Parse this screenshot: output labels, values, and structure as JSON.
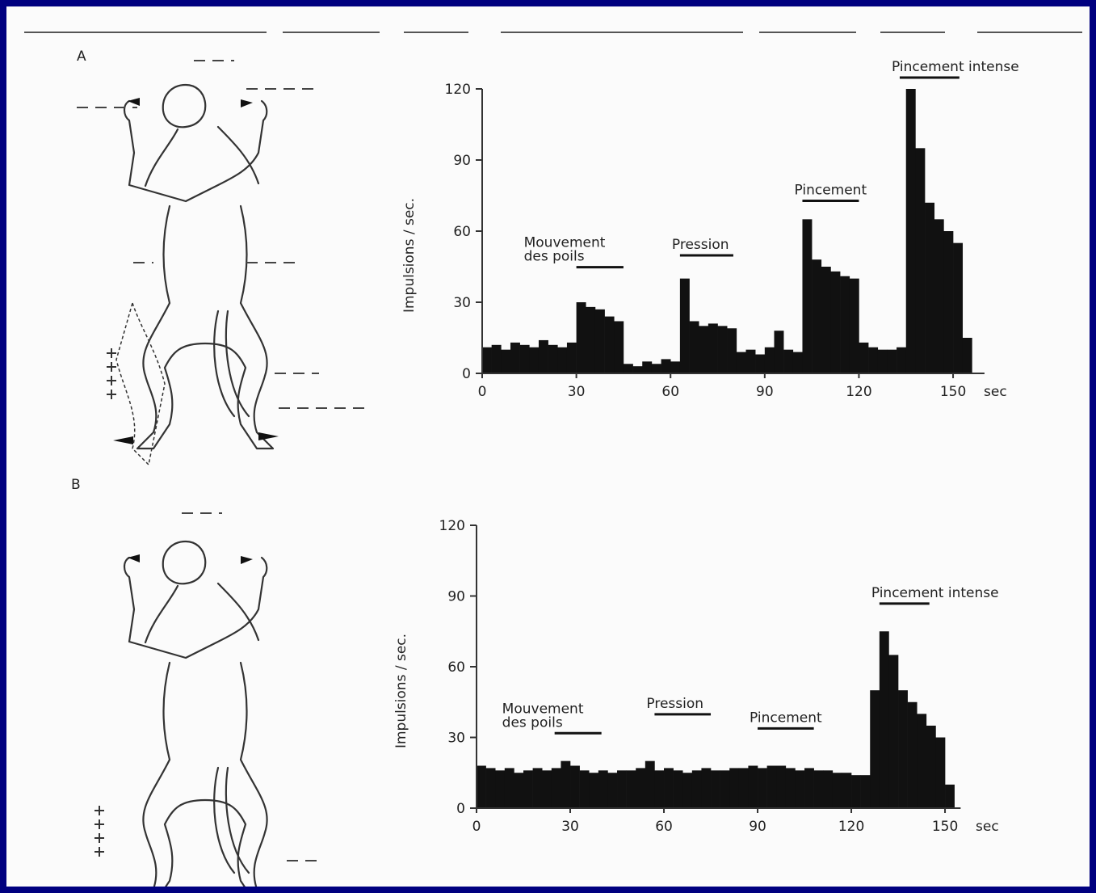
{
  "chart_data": [
    {
      "type": "histogram",
      "label": "A",
      "ylabel": "Impulsions / sec.",
      "xunit": "sec",
      "color": "#111111",
      "bins": [
        0,
        3,
        6,
        9,
        12,
        15,
        18,
        21,
        24,
        27,
        30,
        33,
        36,
        39,
        42,
        45,
        48,
        51,
        54,
        57,
        60,
        63,
        66,
        69,
        72,
        75,
        78,
        81,
        84,
        87,
        90,
        93,
        96,
        99,
        102,
        105,
        108,
        111,
        114,
        117,
        120,
        123,
        126,
        129,
        132,
        135,
        138,
        141,
        144,
        147,
        150,
        153,
        156
      ],
      "counts": [
        11,
        12,
        10,
        13,
        12,
        11,
        14,
        12,
        11,
        13,
        30,
        28,
        27,
        24,
        22,
        4,
        3,
        5,
        4,
        6,
        5,
        40,
        22,
        20,
        21,
        20,
        19,
        9,
        10,
        8,
        11,
        18,
        10,
        9,
        65,
        48,
        45,
        43,
        41,
        40,
        13,
        11,
        10,
        10,
        11,
        120,
        95,
        72,
        65,
        60,
        55,
        15
      ],
      "xlim": [
        0,
        160
      ],
      "ylim": [
        0,
        120
      ],
      "xticks": [
        0,
        30,
        60,
        90,
        120,
        150
      ],
      "yticks": [
        0,
        30,
        60,
        90,
        120
      ],
      "annotations": [
        {
          "lines": [
            "Mouvement",
            "des poils"
          ],
          "x": [
            30,
            45
          ],
          "y": 40
        },
        {
          "lines": [
            "Pression"
          ],
          "x": [
            63,
            80
          ],
          "y": 45
        },
        {
          "lines": [
            "Pincement"
          ],
          "x": [
            102,
            120
          ],
          "y": 68
        },
        {
          "lines": [
            "Pincement intense"
          ],
          "x": [
            133,
            152
          ],
          "y": 120
        }
      ]
    },
    {
      "type": "histogram",
      "label": "B",
      "ylabel": "Impulsions / sec.",
      "xunit": "sec",
      "color": "#111111",
      "bins": [
        0,
        3,
        6,
        9,
        12,
        15,
        18,
        21,
        24,
        27,
        30,
        33,
        36,
        39,
        42,
        45,
        48,
        51,
        54,
        57,
        60,
        63,
        66,
        69,
        72,
        75,
        78,
        81,
        84,
        87,
        90,
        93,
        96,
        99,
        102,
        105,
        108,
        111,
        114,
        117,
        120,
        123,
        126,
        129,
        132,
        135,
        138,
        141,
        144,
        147,
        150,
        153
      ],
      "counts": [
        18,
        17,
        16,
        17,
        15,
        16,
        17,
        16,
        17,
        20,
        18,
        16,
        15,
        16,
        15,
        16,
        16,
        17,
        20,
        16,
        17,
        16,
        15,
        16,
        17,
        16,
        16,
        17,
        17,
        18,
        17,
        18,
        18,
        17,
        16,
        17,
        16,
        16,
        15,
        15,
        14,
        14,
        50,
        75,
        65,
        50,
        45,
        40,
        35,
        30,
        10
      ],
      "xlim": [
        0,
        155
      ],
      "ylim": [
        0,
        120
      ],
      "xticks": [
        0,
        30,
        60,
        90,
        120,
        150
      ],
      "yticks": [
        0,
        30,
        60,
        90,
        120
      ],
      "annotations": [
        {
          "lines": [
            "Mouvement",
            "des poils"
          ],
          "x": [
            25,
            40
          ],
          "y": 27
        },
        {
          "lines": [
            "Pression"
          ],
          "x": [
            57,
            75
          ],
          "y": 35
        },
        {
          "lines": [
            "Pincement"
          ],
          "x": [
            90,
            108
          ],
          "y": 29
        },
        {
          "lines": [
            "Pincement intense"
          ],
          "x": [
            129,
            145
          ],
          "y": 82
        }
      ]
    }
  ]
}
